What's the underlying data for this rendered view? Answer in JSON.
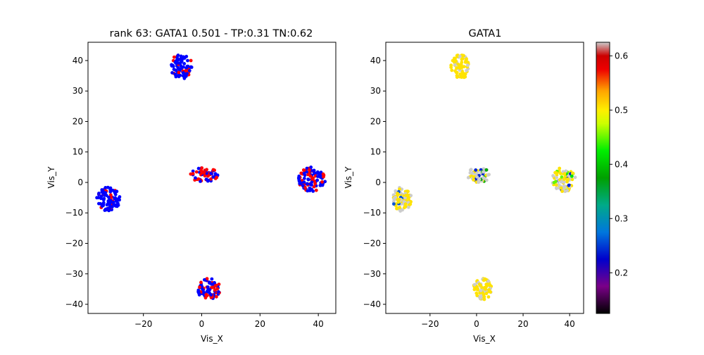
{
  "chart_data": [
    {
      "type": "scatter",
      "title": "rank 63: GATA1 0.501 - TP:0.31 TN:0.62",
      "xlabel": "Vis_X",
      "ylabel": "Vis_Y",
      "xlim": [
        -39,
        46
      ],
      "ylim": [
        -43,
        46
      ],
      "xticks": [
        -20,
        0,
        20,
        40
      ],
      "yticks": [
        -40,
        -30,
        -20,
        -10,
        0,
        10,
        20,
        30,
        40
      ],
      "grid": false,
      "legend": "none",
      "colors": {
        "negative": "#0000ff",
        "positive": "#ff0000"
      },
      "clusters": [
        {
          "center": [
            -7,
            38
          ],
          "rx": 4,
          "ry": 4,
          "n": 80,
          "positive_fraction": 0.3
        },
        {
          "center": [
            1,
            2.5
          ],
          "rx": 5,
          "ry": 2.5,
          "n": 60,
          "positive_fraction": 0.55
        },
        {
          "center": [
            -32,
            -5.5
          ],
          "rx": 4,
          "ry": 4,
          "n": 90,
          "positive_fraction": 0.2
        },
        {
          "center": [
            37.5,
            1
          ],
          "rx": 5,
          "ry": 4,
          "n": 90,
          "positive_fraction": 0.3
        },
        {
          "center": [
            2.5,
            -35
          ],
          "rx": 4,
          "ry": 3.5,
          "n": 80,
          "positive_fraction": 0.45
        }
      ]
    },
    {
      "type": "scatter",
      "title": "GATA1",
      "xlabel": "Vis_X",
      "ylabel": "Vis_Y",
      "xlim": [
        -39,
        46
      ],
      "ylim": [
        -43,
        46
      ],
      "xticks": [
        -20,
        0,
        20,
        40
      ],
      "yticks": [
        -40,
        -30,
        -20,
        -10,
        0,
        10,
        20,
        30,
        40
      ],
      "grid": false,
      "colorbar": {
        "range": [
          0.125,
          0.625
        ],
        "ticks": [
          0.2,
          0.3,
          0.4,
          0.5,
          0.6
        ],
        "colormap": "nipy_spectral"
      },
      "clusters": [
        {
          "center": [
            -7,
            38
          ],
          "rx": 4,
          "ry": 4,
          "n": 80,
          "value_mix": [
            [
              0.51,
              0.8
            ],
            [
              0.625,
              0.2
            ]
          ]
        },
        {
          "center": [
            1,
            2.5
          ],
          "rx": 5,
          "ry": 2.5,
          "n": 60,
          "value_mix": [
            [
              0.625,
              0.5
            ],
            [
              0.51,
              0.3
            ],
            [
              0.24,
              0.1
            ],
            [
              0.38,
              0.1
            ]
          ]
        },
        {
          "center": [
            -32,
            -5.5
          ],
          "rx": 4,
          "ry": 4,
          "n": 90,
          "value_mix": [
            [
              0.51,
              0.55
            ],
            [
              0.625,
              0.35
            ],
            [
              0.26,
              0.1
            ]
          ]
        },
        {
          "center": [
            37.5,
            1
          ],
          "rx": 5,
          "ry": 4,
          "n": 90,
          "value_mix": [
            [
              0.51,
              0.45
            ],
            [
              0.625,
              0.35
            ],
            [
              0.24,
              0.1
            ],
            [
              0.42,
              0.05
            ],
            [
              0.45,
              0.05
            ]
          ]
        },
        {
          "center": [
            2.5,
            -35
          ],
          "rx": 4,
          "ry": 3.5,
          "n": 80,
          "value_mix": [
            [
              0.51,
              0.75
            ],
            [
              0.625,
              0.25
            ]
          ]
        }
      ]
    }
  ]
}
